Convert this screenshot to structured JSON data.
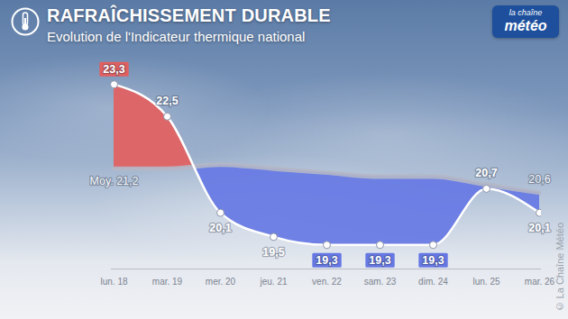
{
  "chart_data": {
    "type": "line",
    "title": "RAFRAÎCHISSEMENT DURABLE",
    "subtitle": "Evolution de l'Indicateur thermique national",
    "annotations": [
      "la chaîne",
      "météo",
      "© La Chaîne Météo"
    ],
    "categories": [
      "lun. 18",
      "mar. 19",
      "mer. 20",
      "jeu. 21",
      "ven. 22",
      "sam. 23",
      "dim. 24",
      "lun. 25",
      "mar. 26"
    ],
    "series": [
      {
        "color": "#ffffff",
        "values": [
          23.3,
          22.5,
          20.1,
          19.5,
          19.3,
          19.3,
          19.3,
          20.7,
          20.1
        ],
        "value_labels": [
          "23,3",
          "22,5",
          "20,1",
          "19,5",
          "19,3",
          "19,3",
          "19,3",
          "20,7",
          "20,1"
        ]
      },
      {
        "color": "#b4b7c6",
        "values": [
          21.2,
          21.2,
          21.3,
          21.2,
          21.1,
          21.0,
          21.0,
          20.8,
          20.6
        ],
        "value_labels": [
          "Moy. 21,2",
          null,
          null,
          null,
          null,
          null,
          null,
          null,
          "20,6"
        ]
      }
    ],
    "ylim": [
      18.7,
      24.0
    ],
    "data_labels": true,
    "tick_labels": "x",
    "grid": false
  }
}
